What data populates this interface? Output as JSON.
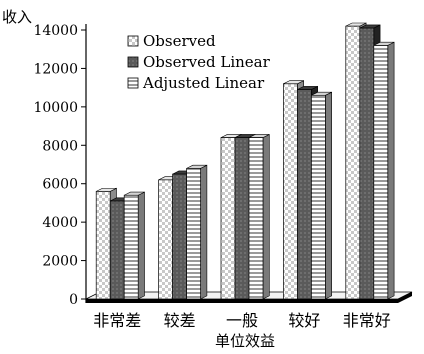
{
  "chart_data": {
    "type": "bar",
    "ylabel": "收入",
    "xlabel": "单位效益",
    "categories": [
      "非常差",
      "较差",
      "一般",
      "较好",
      "非常好"
    ],
    "ylim": [
      0,
      14000
    ],
    "yticks": [
      "0",
      "2000",
      "4000",
      "6000",
      "8000",
      "10000",
      "12000",
      "14000"
    ],
    "series": [
      {
        "name": "Observed",
        "values": [
          5600,
          6200,
          8400,
          11200,
          14200
        ]
      },
      {
        "name": "Observed Linear",
        "values": [
          5100,
          6500,
          8400,
          10900,
          14100
        ]
      },
      {
        "name": "Adjusted Linear",
        "values": [
          5400,
          6800,
          8400,
          10600,
          13200
        ]
      }
    ],
    "legend_position": "top-left",
    "grid": false
  }
}
